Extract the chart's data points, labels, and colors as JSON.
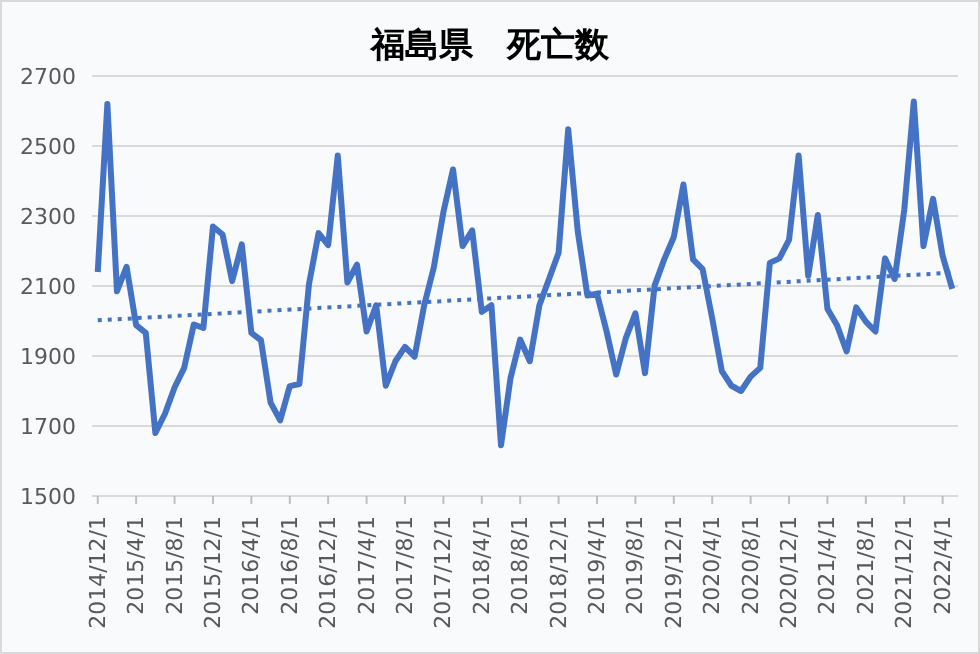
{
  "chart_data": {
    "type": "line",
    "title": "福島県　死亡数",
    "categories": [
      "2014/12/1",
      null,
      null,
      null,
      "2015/4/1",
      null,
      null,
      null,
      "2015/8/1",
      null,
      null,
      null,
      "2015/12/1",
      null,
      null,
      null,
      "2016/4/1",
      null,
      null,
      null,
      "2016/8/1",
      null,
      null,
      null,
      "2016/12/1",
      null,
      null,
      null,
      "2017/4/1",
      null,
      null,
      null,
      "2017/8/1",
      null,
      null,
      null,
      "2017/12/1",
      null,
      null,
      null,
      "2018/4/1",
      null,
      null,
      null,
      "2018/8/1",
      null,
      null,
      null,
      "2018/12/1",
      null,
      null,
      null,
      "2019/4/1",
      null,
      null,
      null,
      "2019/8/1",
      null,
      null,
      null,
      "2019/12/1",
      null,
      null,
      null,
      "2020/4/1",
      null,
      null,
      null,
      "2020/8/1",
      null,
      null,
      null,
      "2020/12/1",
      null,
      null,
      null,
      "2021/4/1",
      null,
      null,
      null,
      "2021/8/1",
      null,
      null,
      null,
      "2021/12/1",
      null,
      null,
      null,
      "2022/4/1",
      null
    ],
    "series": [
      {
        "color": "#4472c4",
        "line_style": "solid",
        "values": [
          2140,
          2620,
          2085,
          2155,
          1988,
          1966,
          1680,
          1735,
          1810,
          1866,
          1990,
          1980,
          2270,
          2247,
          2114,
          2219,
          1966,
          1945,
          1767,
          1716,
          1814,
          1820,
          2105,
          2251,
          2217,
          2473,
          2110,
          2161,
          1970,
          2045,
          1815,
          1885,
          1926,
          1898,
          2045,
          2153,
          2311,
          2433,
          2214,
          2259,
          2026,
          2045,
          1645,
          1838,
          1947,
          1885,
          2045,
          2120,
          2195,
          2548,
          2255,
          2073,
          2078,
          1970,
          1847,
          1951,
          2022,
          1851,
          2101,
          2176,
          2240,
          2390,
          2176,
          2148,
          2007,
          1857,
          1815,
          1800,
          1841,
          1866,
          2166,
          2179,
          2232,
          2473,
          2129,
          2303,
          2035,
          1988,
          1913,
          2039,
          1998,
          1970,
          2179,
          2120,
          2317,
          2627,
          2214,
          2349,
          2186,
          2092
        ]
      },
      {
        "color": "#4472c4",
        "line_style": "dotted",
        "values": [
          2002,
          null,
          null,
          null,
          null,
          null,
          null,
          null,
          null,
          null,
          null,
          null,
          null,
          null,
          null,
          null,
          null,
          null,
          null,
          null,
          null,
          null,
          null,
          null,
          null,
          null,
          null,
          null,
          null,
          null,
          null,
          null,
          null,
          null,
          null,
          null,
          null,
          null,
          null,
          null,
          null,
          null,
          null,
          null,
          null,
          null,
          null,
          null,
          null,
          null,
          null,
          null,
          null,
          null,
          null,
          null,
          null,
          null,
          null,
          null,
          null,
          null,
          null,
          null,
          null,
          null,
          null,
          null,
          null,
          null,
          null,
          null,
          null,
          null,
          null,
          null,
          null,
          null,
          null,
          null,
          null,
          null,
          null,
          null,
          null,
          null,
          null,
          null,
          null,
          2138
        ]
      }
    ],
    "ylim": [
      1500,
      2700
    ],
    "yticks": [
      1500,
      1700,
      1900,
      2100,
      2300,
      2500,
      2700
    ],
    "grid": "y",
    "marker": "none"
  }
}
